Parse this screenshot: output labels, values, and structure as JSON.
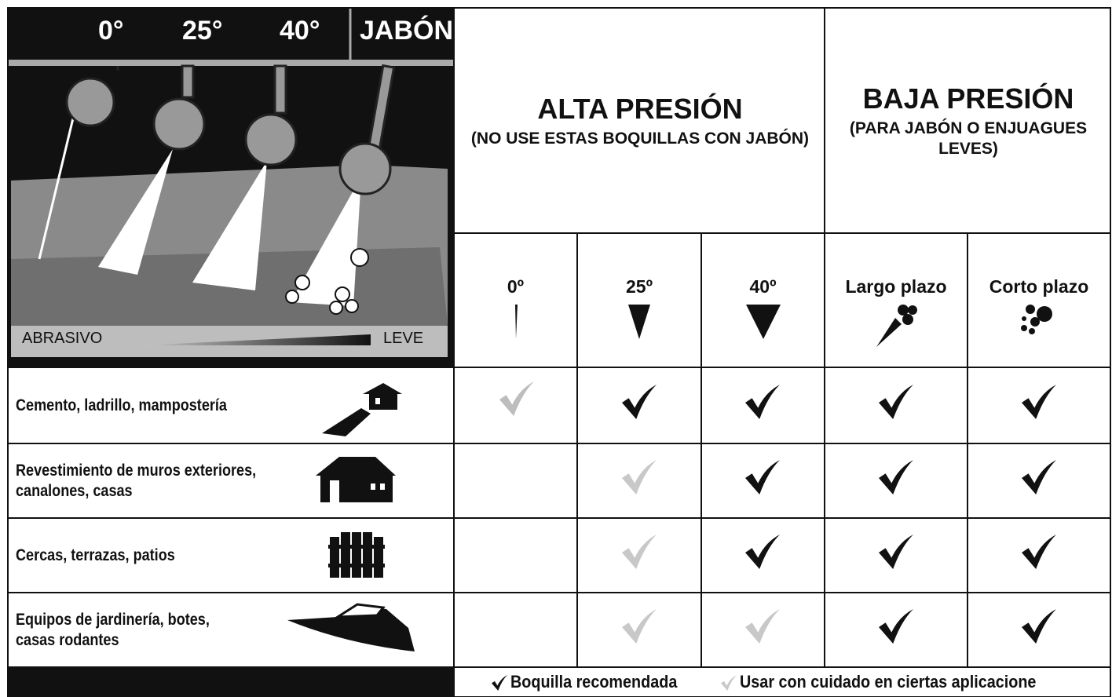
{
  "illustration": {
    "angles": [
      "0°",
      "25°",
      "40°",
      "JABÓN"
    ],
    "scale_left": "ABRASIVO",
    "scale_right": "LEVE"
  },
  "groups": [
    {
      "title": "ALTA PRESIÓN",
      "subtitle": [
        "(NO USE ESTAS BOQUILLAS CON JABÓN)"
      ]
    },
    {
      "title": "BAJA PRESIÓN",
      "subtitle": [
        "(PARA JABÓN O ENJUAGUES",
        "LEVES)"
      ]
    }
  ],
  "columns": [
    "0º",
    "25º",
    "40º",
    "Largo plazo",
    "Corto plazo"
  ],
  "rows": [
    {
      "label": [
        "Cemento, ladrillo, mampostería"
      ]
    },
    {
      "label": [
        "Revestimiento de muros exteriores,",
        "canalones, casas"
      ]
    },
    {
      "label": [
        "Cercas, terrazas, patios"
      ]
    },
    {
      "label": [
        "Equipos de jardinería, botes,",
        "casas rodantes"
      ]
    }
  ],
  "legend": {
    "recommended": "Boquilla recomendada",
    "caution": "Usar con cuidado en ciertas aplicacione"
  }
}
